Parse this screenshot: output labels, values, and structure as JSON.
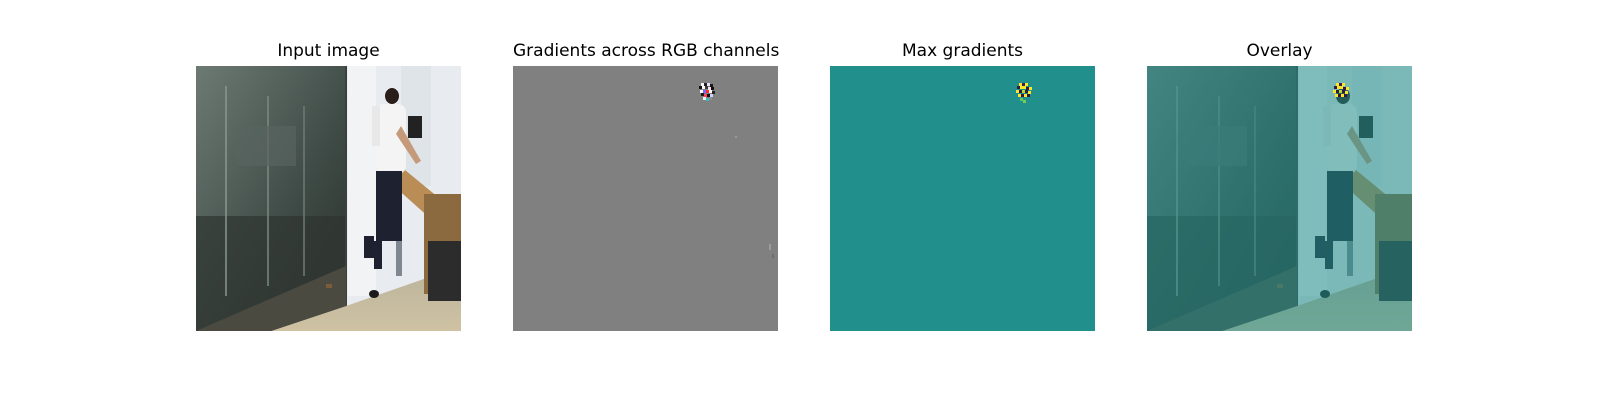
{
  "figure": {
    "panels": [
      {
        "title": "Input image"
      },
      {
        "title": "Gradients across RGB channels"
      },
      {
        "title": "Max gradients"
      },
      {
        "title": "Overlay"
      }
    ]
  },
  "colors": {
    "background": "#ffffff",
    "gradient_gray": "#808080",
    "max_gradient_teal": "#21908d",
    "highlight_yellow": "#fde725",
    "highlight_dark": "#2b1a4a"
  }
}
